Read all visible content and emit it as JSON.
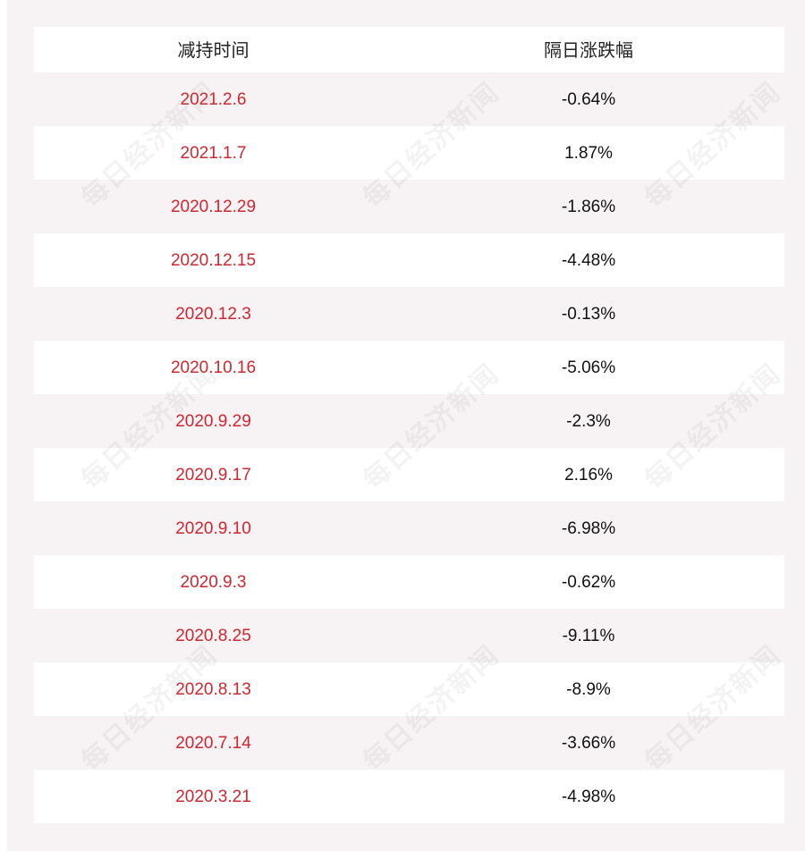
{
  "table": {
    "headers": [
      "减持时间",
      "隔日涨跌幅"
    ],
    "rows": [
      {
        "date": "2021.2.6",
        "change": "-0.64%"
      },
      {
        "date": "2021.1.7",
        "change": "1.87%"
      },
      {
        "date": "2020.12.29",
        "change": "-1.86%"
      },
      {
        "date": "2020.12.15",
        "change": "-4.48%"
      },
      {
        "date": "2020.12.3",
        "change": "-0.13%"
      },
      {
        "date": "2020.10.16",
        "change": "-5.06%"
      },
      {
        "date": "2020.9.29",
        "change": "-2.3%"
      },
      {
        "date": "2020.9.17",
        "change": "2.16%"
      },
      {
        "date": "2020.9.10",
        "change": "-6.98%"
      },
      {
        "date": "2020.9.3",
        "change": "-0.62%"
      },
      {
        "date": "2020.8.25",
        "change": "-9.11%"
      },
      {
        "date": "2020.8.13",
        "change": "-8.9%"
      },
      {
        "date": "2020.7.14",
        "change": "-3.66%"
      },
      {
        "date": "2020.3.21",
        "change": "-4.98%"
      }
    ]
  },
  "watermark": {
    "text": "每日经济新闻"
  },
  "colors": {
    "date_text": "#d0262f",
    "value_text": "#111111",
    "stripe": "#f7f2f3"
  }
}
